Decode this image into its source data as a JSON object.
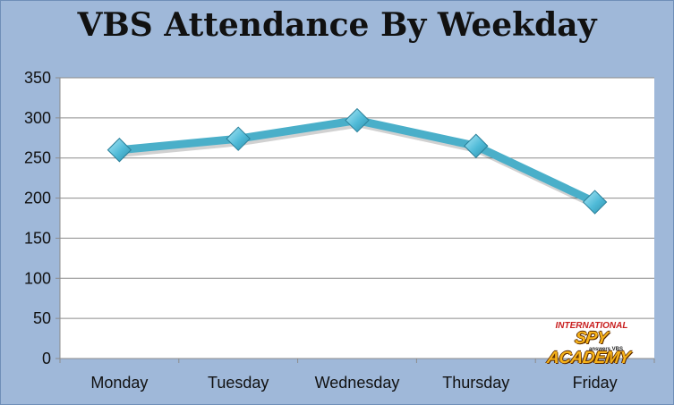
{
  "chart_data": {
    "type": "line",
    "title": "VBS Attendance By Weekday",
    "categories": [
      "Monday",
      "Tuesday",
      "Wednesday",
      "Thursday",
      "Friday"
    ],
    "series": [
      {
        "values": [
          260,
          274,
          297,
          265,
          195
        ]
      }
    ],
    "ylim": [
      0,
      350
    ],
    "yticks": [
      0,
      50,
      100,
      150,
      200,
      250,
      300,
      350
    ],
    "grid": true,
    "legend": "none",
    "colors": {
      "line": "#4aafc9",
      "marker": "#5cc3df",
      "background": "#9fb8d9",
      "plot": "#ffffff",
      "grid": "#8c8c8c"
    }
  },
  "logo": {
    "top": "INTERNATIONAL",
    "main": "SPY ACADEMY",
    "sub": "answers VBS"
  }
}
